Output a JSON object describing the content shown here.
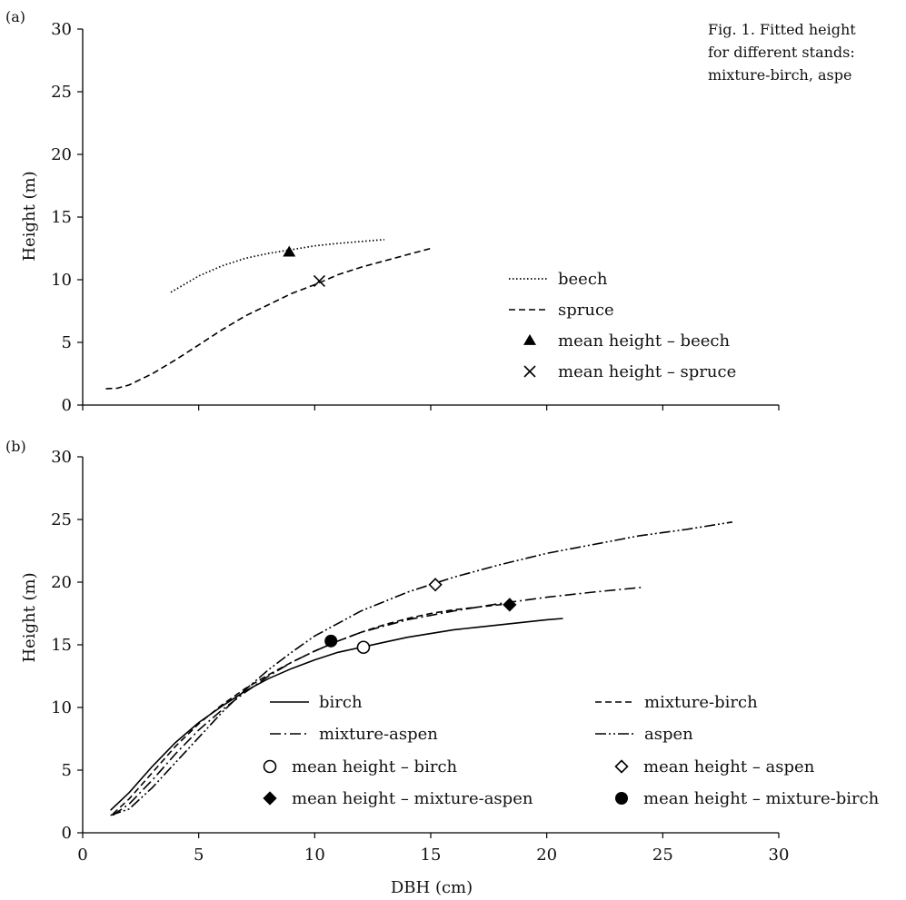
{
  "caption": {
    "line1": "Fig. 1. Fitted height",
    "line2": "for different stands:",
    "line3": "mixture-birch, aspe"
  },
  "x_axis": {
    "label": "DBH (cm)",
    "ticks": [
      "0",
      "5",
      "10",
      "15",
      "20",
      "25",
      "30"
    ]
  },
  "chart_data": [
    {
      "type": "line",
      "panel": "(a)",
      "xlabel": "",
      "ylabel": "Height (m)",
      "xlim": [
        0,
        30
      ],
      "ylim": [
        0,
        30
      ],
      "yticks": [
        "0",
        "5",
        "10",
        "15",
        "20",
        "25",
        "30"
      ],
      "legend_position": "right",
      "series": [
        {
          "name": "beech",
          "style": "dotted",
          "x": [
            3.8,
            5,
            6,
            7,
            8,
            9,
            10,
            11,
            12,
            13
          ],
          "y": [
            9.0,
            10.3,
            11.1,
            11.7,
            12.1,
            12.4,
            12.7,
            12.9,
            13.05,
            13.2
          ]
        },
        {
          "name": "spruce",
          "style": "dashed",
          "x": [
            1,
            1.5,
            2,
            3,
            4,
            5,
            6,
            7,
            8,
            9,
            10,
            11,
            12,
            13,
            14,
            15
          ],
          "y": [
            1.3,
            1.35,
            1.6,
            2.5,
            3.6,
            4.8,
            6.0,
            7.1,
            8.0,
            8.9,
            9.6,
            10.4,
            11.0,
            11.5,
            12.0,
            12.5
          ]
        }
      ],
      "points": [
        {
          "name": "mean height – beech",
          "marker": "triangle-filled",
          "x": 8.9,
          "y": 12.2
        },
        {
          "name": "mean height – spruce",
          "marker": "cross",
          "x": 10.2,
          "y": 9.9
        }
      ]
    },
    {
      "type": "line",
      "panel": "(b)",
      "xlabel": "DBH (cm)",
      "ylabel": "Height (m)",
      "xlim": [
        0,
        30
      ],
      "ylim": [
        0,
        30
      ],
      "yticks": [
        "0",
        "5",
        "10",
        "15",
        "20",
        "25",
        "30"
      ],
      "legend_position": "bottom",
      "series": [
        {
          "name": "birch",
          "style": "solid",
          "x": [
            1.2,
            2,
            3,
            4,
            5,
            6,
            7,
            8,
            9,
            10,
            11,
            12,
            13,
            14,
            15,
            16,
            17,
            18,
            19,
            20,
            20.7
          ],
          "y": [
            1.8,
            3.2,
            5.3,
            7.2,
            8.8,
            10.1,
            11.3,
            12.3,
            13.1,
            13.8,
            14.4,
            14.8,
            15.2,
            15.6,
            15.9,
            16.2,
            16.4,
            16.6,
            16.8,
            17.0,
            17.1
          ]
        },
        {
          "name": "mixture-birch",
          "style": "dashed",
          "x": [
            1.3,
            2,
            3,
            4,
            5,
            6,
            7,
            8,
            9,
            10,
            11,
            12,
            13,
            14,
            15,
            16,
            17,
            18,
            18.5
          ],
          "y": [
            1.5,
            2.7,
            4.8,
            6.9,
            8.7,
            10.2,
            11.5,
            12.6,
            13.6,
            14.5,
            15.3,
            16.0,
            16.6,
            17.1,
            17.5,
            17.8,
            18.0,
            18.2,
            18.3
          ]
        },
        {
          "name": "mixture-aspen",
          "style": "dashdot",
          "x": [
            1.3,
            2,
            3,
            4,
            5,
            6,
            7,
            8,
            9,
            10,
            11,
            12,
            14,
            16,
            18,
            20,
            22,
            24.2
          ],
          "y": [
            1.4,
            2.3,
            4.2,
            6.3,
            8.2,
            9.8,
            11.2,
            12.5,
            13.6,
            14.5,
            15.3,
            16.0,
            17.0,
            17.7,
            18.3,
            18.8,
            19.2,
            19.6
          ]
        },
        {
          "name": "aspen",
          "style": "dashdotdot",
          "x": [
            1.2,
            2,
            3,
            4,
            5,
            6,
            7,
            8,
            9,
            10,
            12,
            14,
            16,
            18,
            20,
            22,
            24,
            26,
            28
          ],
          "y": [
            1.4,
            1.9,
            3.6,
            5.6,
            7.6,
            9.6,
            11.4,
            13.0,
            14.4,
            15.7,
            17.7,
            19.2,
            20.4,
            21.4,
            22.3,
            23.0,
            23.7,
            24.2,
            24.8
          ]
        }
      ],
      "points": [
        {
          "name": "mean height – birch",
          "marker": "circle-open",
          "x": 12.1,
          "y": 14.8
        },
        {
          "name": "mean height – aspen",
          "marker": "diamond-open",
          "x": 15.2,
          "y": 19.8
        },
        {
          "name": "mean height – mixture-aspen",
          "marker": "diamond-filled",
          "x": 18.4,
          "y": 18.2
        },
        {
          "name": "mean height – mixture-birch",
          "marker": "circle-filled",
          "x": 10.7,
          "y": 15.3
        }
      ]
    }
  ]
}
